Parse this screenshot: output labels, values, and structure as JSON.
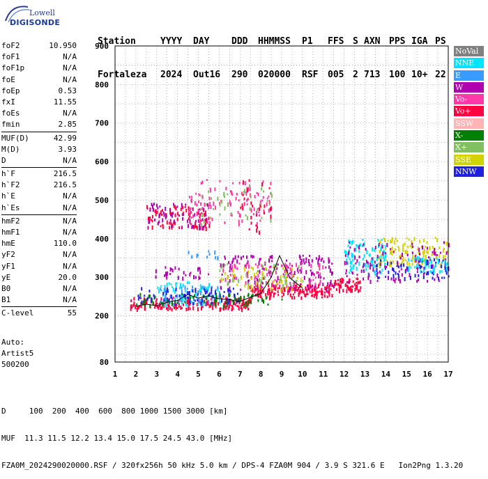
{
  "logo": {
    "line1": "Lowell",
    "line2": "DIGISONDE"
  },
  "header": {
    "labels": [
      "Station",
      "YYYY",
      "DAY",
      "DDD",
      "HHMMSS",
      "P1",
      "FFS",
      "S",
      "AXN",
      "PPS",
      "IGA",
      "PS"
    ],
    "values": [
      "Fortaleza",
      "2024",
      "Out16",
      "290",
      "020000",
      "RSF",
      "005",
      "2",
      "713",
      "100",
      "10+",
      "22"
    ]
  },
  "params": {
    "group1": [
      {
        "name": "foF2",
        "value": "10.950"
      },
      {
        "name": "foF1",
        "value": "N/A"
      },
      {
        "name": "foF1p",
        "value": "N/A"
      },
      {
        "name": "foE",
        "value": "N/A"
      },
      {
        "name": "foEp",
        "value": "0.53"
      },
      {
        "name": "fxI",
        "value": "11.55"
      },
      {
        "name": "foEs",
        "value": "N/A"
      },
      {
        "name": "fmin",
        "value": "2.85"
      }
    ],
    "group2": [
      {
        "name": "MUF(D)",
        "value": "42.99"
      },
      {
        "name": "M(D)",
        "value": "3.93"
      },
      {
        "name": "D",
        "value": "N/A"
      }
    ],
    "group3": [
      {
        "name": "h`F",
        "value": "216.5"
      },
      {
        "name": "h`F2",
        "value": "216.5"
      },
      {
        "name": "h`E",
        "value": "N/A"
      },
      {
        "name": "h`Es",
        "value": "N/A"
      }
    ],
    "group4": [
      {
        "name": "hmF2",
        "value": "N/A"
      },
      {
        "name": "hmF1",
        "value": "N/A"
      },
      {
        "name": "hmE",
        "value": "110.0"
      },
      {
        "name": "yF2",
        "value": "N/A"
      },
      {
        "name": "yF1",
        "value": "N/A"
      },
      {
        "name": "yE",
        "value": "20.0"
      },
      {
        "name": "B0",
        "value": "N/A"
      },
      {
        "name": "B1",
        "value": "N/A"
      }
    ],
    "group5": [
      {
        "name": "C-level",
        "value": "55"
      }
    ]
  },
  "auto": {
    "line1": "Auto:",
    "line2": "Artist5",
    "line3": "500200"
  },
  "legend": [
    {
      "label": "NoVal",
      "color": "#808080"
    },
    {
      "label": "NNE",
      "color": "#00e5ff"
    },
    {
      "label": "E",
      "color": "#3a9bff"
    },
    {
      "label": "W",
      "color": "#b000b0"
    },
    {
      "label": "Vo-",
      "color": "#ff3aa8"
    },
    {
      "label": "Vo+",
      "color": "#ff0040"
    },
    {
      "label": "SSW",
      "color": "#ffb4b4"
    },
    {
      "label": "X-",
      "color": "#008000"
    },
    {
      "label": "X+",
      "color": "#80c060"
    },
    {
      "label": "SSE",
      "color": "#d2d200"
    },
    {
      "label": "NNW",
      "color": "#2020e0"
    }
  ],
  "bottom": {
    "line1": "D     100  200  400  600  800 1000 1500 3000 [km]",
    "line2": "MUF  11.3 11.5 12.2 13.4 15.0 17.5 24.5 43.0 [MHz]",
    "line3": "FZA0M_2024290020000.RSF / 320fx256h 50 kHz 5.0 km / DPS-4 FZA0M 904 / 3.9 S 321.6 E   Ion2Png 1.3.20"
  },
  "chart_data": {
    "type": "scatter",
    "xlim": [
      1,
      17
    ],
    "ylim": [
      80,
      900
    ],
    "x_ticks": [
      "1",
      "2",
      "3",
      "4",
      "5",
      "6",
      "7",
      "8",
      "9",
      "10",
      "11",
      "12",
      "13",
      "14",
      "15",
      "16",
      "17"
    ],
    "y_ticks": [
      "80",
      "200",
      "300",
      "400",
      "500",
      "600",
      "700",
      "800",
      "900"
    ],
    "grid": true,
    "trace": {
      "x": [
        2.0,
        2.5,
        3.0,
        3.5,
        4.0,
        4.5,
        5.0,
        5.5,
        6.0,
        6.5,
        7.0,
        7.5,
        8.0,
        8.5,
        8.9,
        9.4,
        10.0
      ],
      "y": [
        224,
        230,
        226,
        235,
        240,
        255,
        246,
        252,
        244,
        242,
        237,
        248,
        258,
        300,
        356,
        298,
        272
      ]
    },
    "clusters": [
      {
        "color": "#ff0040",
        "x": [
          1.7,
          7.5
        ],
        "y": [
          220,
          250
        ],
        "n": 220
      },
      {
        "color": "#ff0040",
        "x": [
          7.5,
          11.5
        ],
        "y": [
          250,
          285
        ],
        "n": 150
      },
      {
        "color": "#ff0040",
        "x": [
          11.5,
          12.8
        ],
        "y": [
          268,
          300
        ],
        "n": 60
      },
      {
        "color": "#00e5ff",
        "x": [
          3,
          6
        ],
        "y": [
          230,
          290
        ],
        "n": 70
      },
      {
        "color": "#3a9bff",
        "x": [
          3,
          6
        ],
        "y": [
          235,
          280
        ],
        "n": 60
      },
      {
        "color": "#2020e0",
        "x": [
          2,
          7
        ],
        "y": [
          235,
          275
        ],
        "n": 80
      },
      {
        "color": "#008000",
        "x": [
          2,
          9
        ],
        "y": [
          228,
          260
        ],
        "n": 70
      },
      {
        "color": "#b000b0",
        "x": [
          6,
          11.5
        ],
        "y": [
          270,
          360
        ],
        "n": 150
      },
      {
        "color": "#ff3aa8",
        "x": [
          6,
          11
        ],
        "y": [
          280,
          340
        ],
        "n": 80
      },
      {
        "color": "#d2d200",
        "x": [
          6,
          10
        ],
        "y": [
          270,
          330
        ],
        "n": 60
      },
      {
        "color": "#80c060",
        "x": [
          6,
          10
        ],
        "y": [
          280,
          340
        ],
        "n": 40
      },
      {
        "color": "#b000b0",
        "x": [
          2.8,
          6.5
        ],
        "y": [
          300,
          330
        ],
        "n": 30
      },
      {
        "color": "#00e5ff",
        "x": [
          12,
          14
        ],
        "y": [
          310,
          400
        ],
        "n": 90
      },
      {
        "color": "#d2d200",
        "x": [
          13.5,
          17
        ],
        "y": [
          330,
          405
        ],
        "n": 130
      },
      {
        "color": "#2020e0",
        "x": [
          13.5,
          17
        ],
        "y": [
          300,
          350
        ],
        "n": 70
      },
      {
        "color": "#b000b0",
        "x": [
          12,
          17
        ],
        "y": [
          290,
          395
        ],
        "n": 110
      },
      {
        "color": "#00e5ff",
        "x": [
          15,
          17
        ],
        "y": [
          315,
          355
        ],
        "n": 40
      },
      {
        "color": "#ff0040",
        "x": [
          2.5,
          5.5
        ],
        "y": [
          430,
          490
        ],
        "n": 80
      },
      {
        "color": "#b000b0",
        "x": [
          2.5,
          5.5
        ],
        "y": [
          430,
          495
        ],
        "n": 60
      },
      {
        "color": "#ff3aa8",
        "x": [
          4.5,
          8.5
        ],
        "y": [
          440,
          560
        ],
        "n": 100
      },
      {
        "color": "#80c060",
        "x": [
          5,
          8.5
        ],
        "y": [
          440,
          540
        ],
        "n": 40
      },
      {
        "color": "#3a9bff",
        "x": [
          4.5,
          6
        ],
        "y": [
          350,
          370
        ],
        "n": 12
      },
      {
        "color": "#ff0040",
        "x": [
          7,
          8.5
        ],
        "y": [
          420,
          560
        ],
        "n": 30
      }
    ]
  }
}
